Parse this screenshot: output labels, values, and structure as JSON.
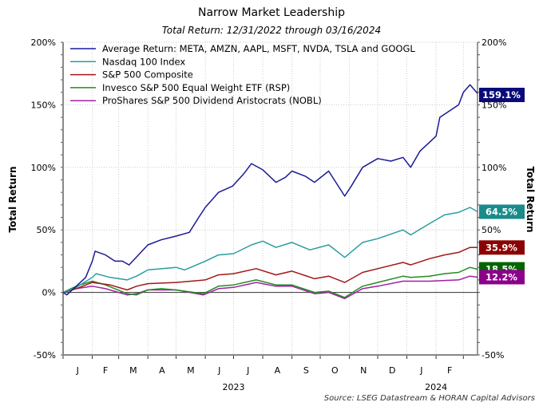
{
  "chart_data": {
    "type": "line",
    "title": "Narrow Market Leadership",
    "subtitle": "Total Return: 12/31/2022 through 03/16/2024",
    "ylabel_left": "Total Return",
    "ylabel_right": "Total Return",
    "ylim": [
      -50,
      200
    ],
    "yticks": [
      -50,
      0,
      50,
      100,
      150,
      200
    ],
    "ytick_labels": [
      "-50%",
      "0%",
      "50%",
      "100%",
      "150%",
      "200%"
    ],
    "ytick_labels_right": [
      "-50%",
      "",
      "50%",
      "100%",
      "150%",
      "200%"
    ],
    "xlim": [
      "2023-01-01",
      "2024-03-16"
    ],
    "month_labels": [
      "J",
      "F",
      "M",
      "A",
      "M",
      "J",
      "J",
      "A",
      "S",
      "O",
      "N",
      "D",
      "J",
      "F"
    ],
    "year_labels": [
      "2023",
      "2024"
    ],
    "grid": true,
    "legend_position": "top-left",
    "source": "Source: LSEG Datastream & HORAN Capital Advisors",
    "series": [
      {
        "name": "Average Return: META, AMZN, AAPL, MSFT, NVDA, TSLA and GOOGL",
        "color": "#1a1a96",
        "end_label": "159.1%",
        "label_color": "#0a0a7a",
        "x": [
          "2023-01-01",
          "2023-01-05",
          "2023-01-15",
          "2023-01-25",
          "2023-02-01",
          "2023-02-04",
          "2023-02-15",
          "2023-02-25",
          "2023-03-05",
          "2023-03-12",
          "2023-03-22",
          "2023-04-01",
          "2023-04-15",
          "2023-05-01",
          "2023-05-15",
          "2023-05-25",
          "2023-06-01",
          "2023-06-15",
          "2023-06-30",
          "2023-07-12",
          "2023-07-20",
          "2023-08-01",
          "2023-08-15",
          "2023-08-25",
          "2023-09-01",
          "2023-09-15",
          "2023-09-25",
          "2023-10-10",
          "2023-10-27",
          "2023-11-03",
          "2023-11-15",
          "2023-12-01",
          "2023-12-15",
          "2023-12-28",
          "2024-01-05",
          "2024-01-15",
          "2024-01-25",
          "2024-02-01",
          "2024-02-05",
          "2024-02-15",
          "2024-02-25",
          "2024-03-01",
          "2024-03-08",
          "2024-03-16"
        ],
        "y": [
          0,
          -2,
          5,
          12,
          25,
          33,
          30,
          25,
          25,
          22,
          30,
          38,
          42,
          45,
          48,
          60,
          68,
          80,
          85,
          95,
          103,
          98,
          88,
          92,
          97,
          93,
          88,
          97,
          77,
          85,
          100,
          107,
          105,
          108,
          100,
          113,
          120,
          125,
          140,
          145,
          150,
          160,
          166,
          159.1
        ]
      },
      {
        "name": "Nasdaq 100 Index",
        "color": "#2a9d9d",
        "end_label": "64.5%",
        "label_color": "#1a8a8a",
        "x": [
          "2023-01-01",
          "2023-01-15",
          "2023-02-01",
          "2023-02-05",
          "2023-02-20",
          "2023-03-10",
          "2023-03-20",
          "2023-04-01",
          "2023-05-01",
          "2023-05-10",
          "2023-06-01",
          "2023-06-15",
          "2023-07-01",
          "2023-07-20",
          "2023-08-01",
          "2023-08-15",
          "2023-09-01",
          "2023-09-20",
          "2023-10-10",
          "2023-10-27",
          "2023-11-15",
          "2023-12-01",
          "2023-12-28",
          "2024-01-05",
          "2024-01-25",
          "2024-02-10",
          "2024-02-25",
          "2024-03-08",
          "2024-03-16"
        ],
        "y": [
          0,
          4,
          12,
          15,
          12,
          10,
          13,
          18,
          20,
          18,
          25,
          30,
          31,
          38,
          41,
          36,
          40,
          34,
          38,
          28,
          40,
          43,
          50,
          46,
          55,
          62,
          64,
          68,
          64.5
        ]
      },
      {
        "name": "S&P 500 Composite",
        "color": "#a01818",
        "end_label": "35.9%",
        "label_color": "#8b0000",
        "x": [
          "2023-01-01",
          "2023-01-15",
          "2023-02-01",
          "2023-02-20",
          "2023-03-10",
          "2023-03-20",
          "2023-04-01",
          "2023-05-01",
          "2023-06-01",
          "2023-06-15",
          "2023-07-01",
          "2023-07-25",
          "2023-08-15",
          "2023-09-01",
          "2023-09-25",
          "2023-10-10",
          "2023-10-27",
          "2023-11-15",
          "2023-12-01",
          "2023-12-28",
          "2024-01-05",
          "2024-01-25",
          "2024-02-10",
          "2024-02-25",
          "2024-03-08",
          "2024-03-16"
        ],
        "y": [
          0,
          3,
          8,
          6,
          2,
          5,
          7,
          8,
          10,
          14,
          15,
          19,
          14,
          17,
          11,
          13,
          8,
          16,
          19,
          24,
          22,
          27,
          30,
          32,
          36,
          35.9
        ]
      },
      {
        "name": "Invesco S&P 500 Equal Weight ETF (RSP)",
        "color": "#228b22",
        "end_label": "18.5%",
        "label_color": "#006400",
        "x": [
          "2023-01-01",
          "2023-01-15",
          "2023-02-01",
          "2023-02-15",
          "2023-03-10",
          "2023-03-20",
          "2023-04-01",
          "2023-04-15",
          "2023-05-01",
          "2023-05-30",
          "2023-06-15",
          "2023-07-01",
          "2023-07-25",
          "2023-08-15",
          "2023-09-01",
          "2023-09-25",
          "2023-10-10",
          "2023-10-27",
          "2023-11-15",
          "2023-12-01",
          "2023-12-28",
          "2024-01-05",
          "2024-01-25",
          "2024-02-10",
          "2024-02-25",
          "2024-03-08",
          "2024-03-16"
        ],
        "y": [
          0,
          5,
          9,
          6,
          -1,
          -2,
          2,
          3,
          2,
          -1,
          5,
          6,
          10,
          6,
          6,
          0,
          1,
          -4,
          5,
          8,
          13,
          12,
          13,
          15,
          16,
          20,
          18.5
        ]
      },
      {
        "name": "ProShares S&P 500 Dividend Aristocrats (NOBL)",
        "color": "#a020a0",
        "end_label": "12.2%",
        "label_color": "#8b008b",
        "x": [
          "2023-01-01",
          "2023-01-15",
          "2023-02-01",
          "2023-02-15",
          "2023-03-10",
          "2023-03-20",
          "2023-04-01",
          "2023-05-01",
          "2023-05-30",
          "2023-06-15",
          "2023-07-01",
          "2023-07-25",
          "2023-08-15",
          "2023-09-01",
          "2023-09-25",
          "2023-10-10",
          "2023-10-27",
          "2023-11-15",
          "2023-12-01",
          "2023-12-28",
          "2024-01-25",
          "2024-02-25",
          "2024-03-08",
          "2024-03-16"
        ],
        "y": [
          0,
          3,
          5,
          3,
          -2,
          -1,
          2,
          2,
          -2,
          3,
          4,
          8,
          5,
          5,
          -1,
          0,
          -5,
          3,
          5,
          9,
          9,
          10,
          13,
          12.2
        ]
      }
    ]
  }
}
